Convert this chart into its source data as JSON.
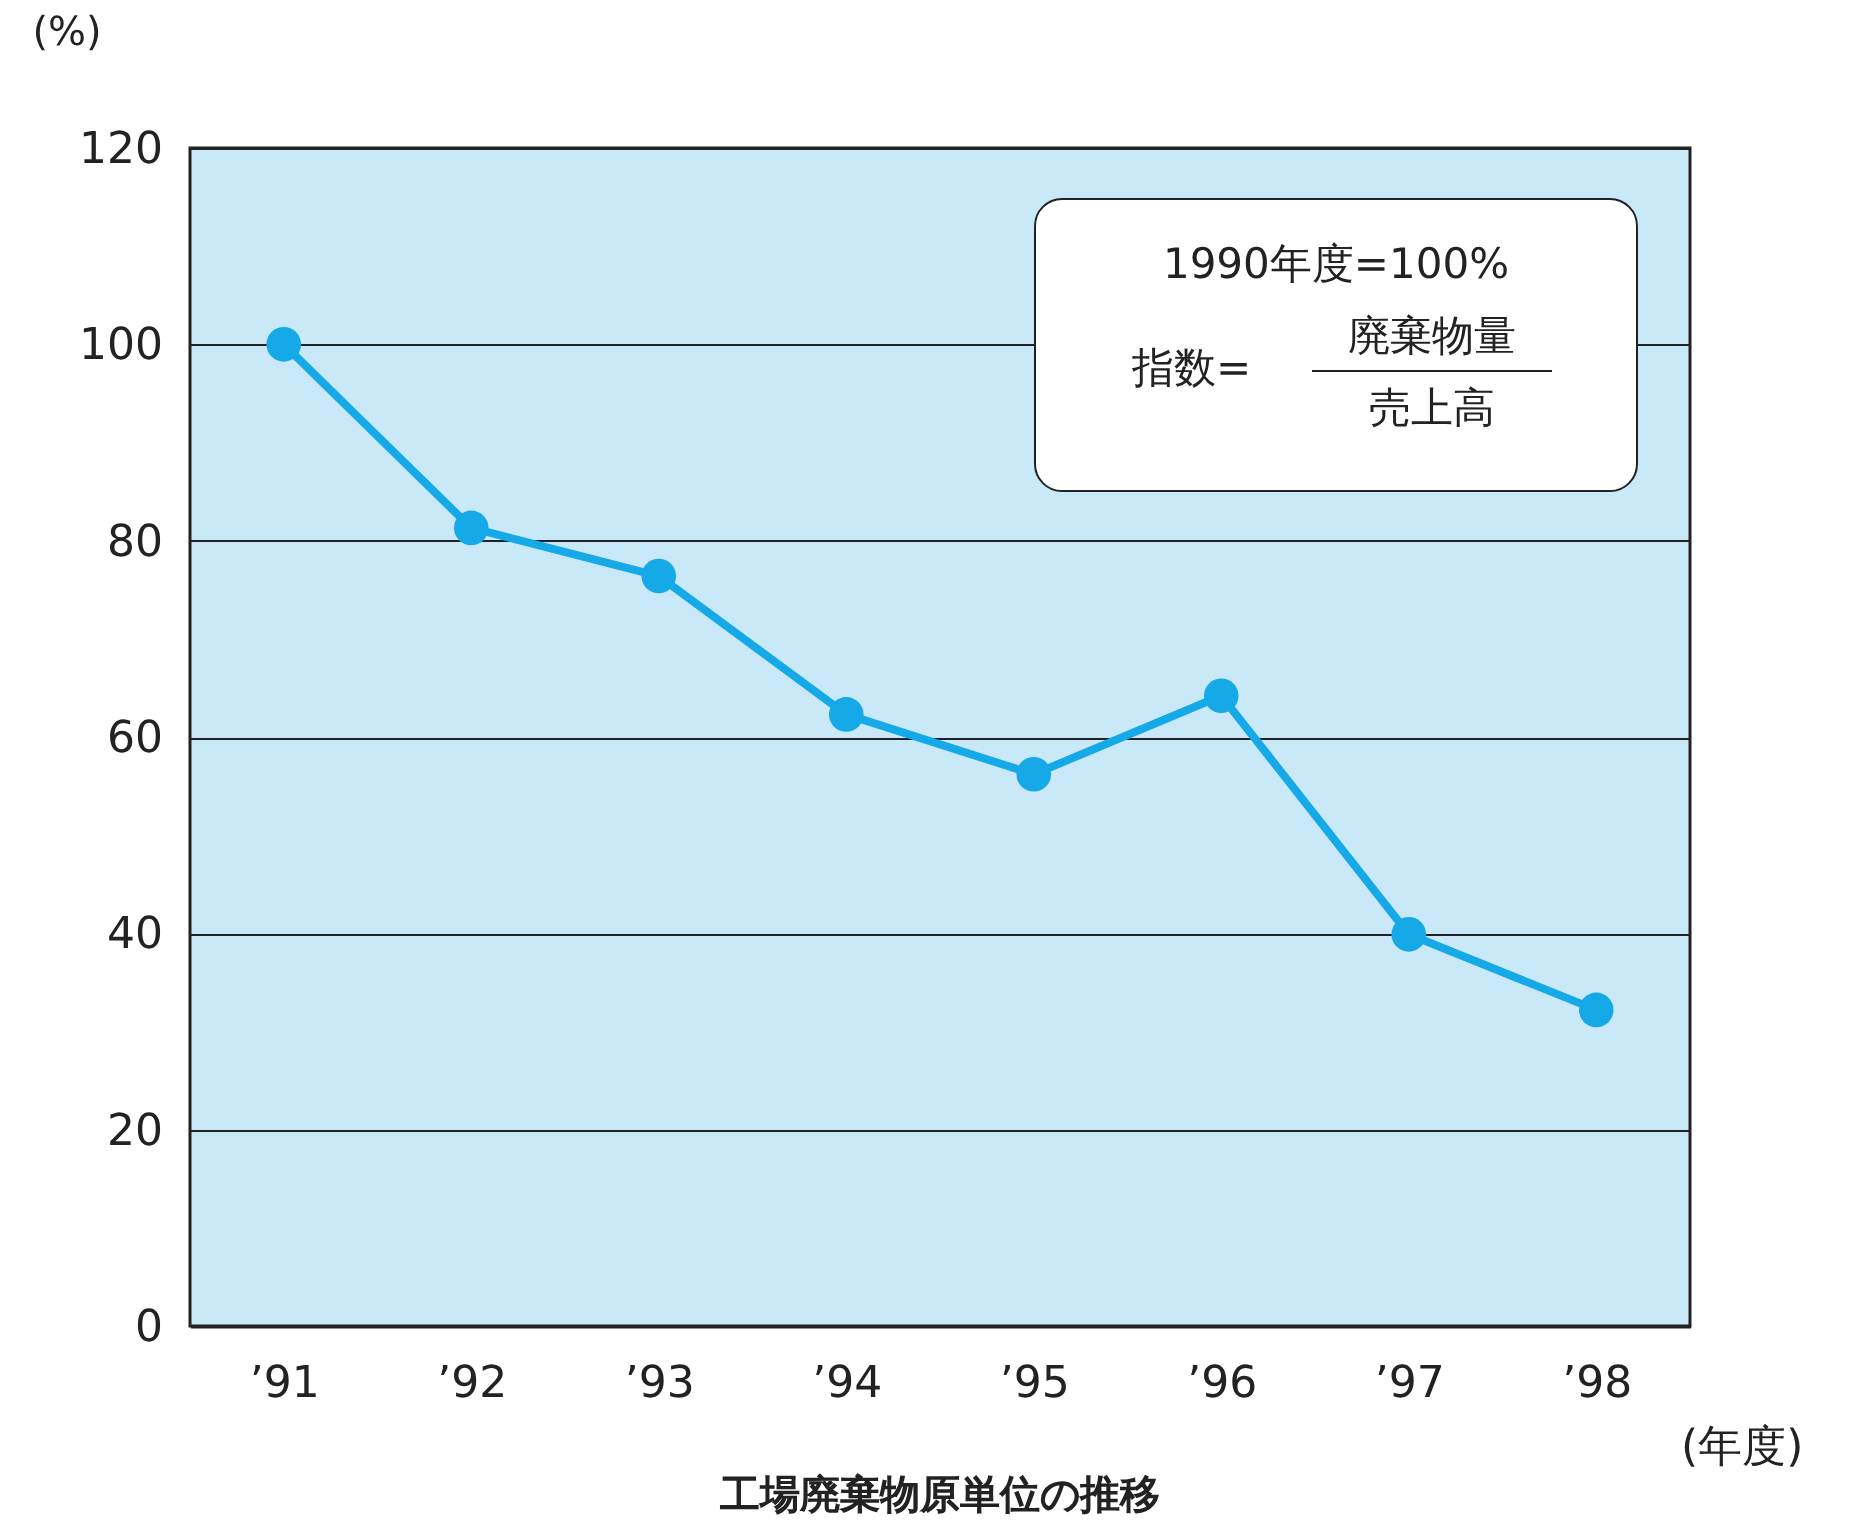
{
  "chart_data": {
    "type": "line",
    "title": "工場廃棄物原単位の推移",
    "xlabel": "(年度)",
    "ylabel": "(%)",
    "categories": [
      "’91",
      "’92",
      "’93",
      "’94",
      "’95",
      "’96",
      "’97",
      "’98"
    ],
    "series": [
      {
        "color": "#16a9e8",
        "values": [
          100,
          81.3,
          76.4,
          62.3,
          56.2,
          64.2,
          39.9,
          32.2
        ]
      }
    ],
    "ylim": [
      0,
      120
    ],
    "yticks": [
      0,
      20,
      40,
      60,
      80,
      100,
      120
    ],
    "grid": "y",
    "marker": "circle",
    "line_style": "solid",
    "annotations": [
      "1990年度=100%",
      "指数=",
      "廃棄物量",
      "売上高"
    ]
  }
}
